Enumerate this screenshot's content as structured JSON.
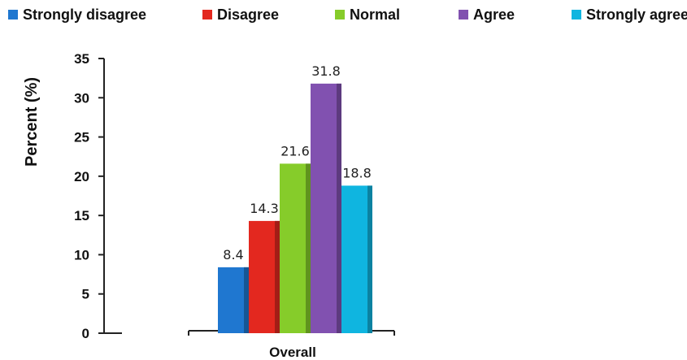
{
  "chart_data": {
    "type": "bar",
    "categories": [
      "Overall"
    ],
    "series": [
      {
        "name": "Strongly disagree",
        "values": [
          8.4
        ],
        "color": "#1f77d0"
      },
      {
        "name": "Disagree",
        "values": [
          14.3
        ],
        "color": "#e3281f"
      },
      {
        "name": "Normal",
        "values": [
          21.6
        ],
        "color": "#86cc2a"
      },
      {
        "name": "Agree",
        "values": [
          31.8
        ],
        "color": "#8151b0"
      },
      {
        "name": "Strongly agree",
        "values": [
          18.8
        ],
        "color": "#0fb5e0"
      }
    ],
    "data_labels": [
      "8.4",
      "14.3",
      "21.6",
      "31.8",
      "18.8"
    ],
    "title": "",
    "xlabel": "",
    "ylabel": "Percent (%)",
    "ylim": [
      0,
      35
    ],
    "yticks": [
      0,
      5,
      10,
      15,
      20,
      25,
      30,
      35
    ],
    "grid": false,
    "legend": "top"
  }
}
